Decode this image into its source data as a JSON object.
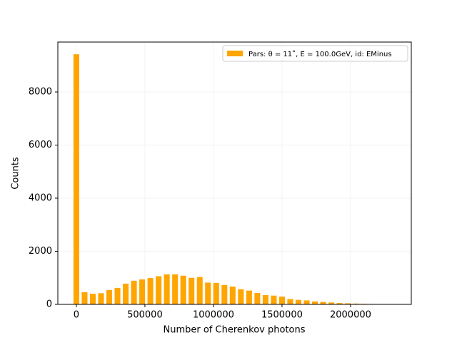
{
  "chart_data": {
    "type": "histogram",
    "xlabel": "Number of Cherenkov photons",
    "ylabel": "Counts",
    "bins": [
      -30000,
      30000,
      90000,
      150000,
      210000,
      270000,
      330000,
      390000,
      450000,
      510000,
      570000,
      630000,
      690000,
      750000,
      810000,
      870000,
      930000,
      990000,
      1050000,
      1110000,
      1170000,
      1230000,
      1290000,
      1350000,
      1410000,
      1470000,
      1530000,
      1590000,
      1650000,
      1710000,
      1770000,
      1830000,
      1890000,
      1950000,
      2010000,
      2070000,
      2130000,
      2190000,
      2250000
    ],
    "series": [
      {
        "name": "Pars: θ = 11˚, E = 100.0GeV, id: EMinus",
        "color": "#ffa500",
        "values": [
          9420,
          460,
          400,
          420,
          540,
          620,
          780,
          890,
          940,
          990,
          1060,
          1130,
          1130,
          1080,
          1000,
          1030,
          820,
          810,
          730,
          670,
          570,
          520,
          430,
          350,
          330,
          290,
          200,
          170,
          150,
          110,
          90,
          70,
          50,
          40,
          30,
          20,
          15,
          10
        ]
      }
    ],
    "xlim": [
      -135000,
      2443000
    ],
    "ylim": [
      0,
      9880
    ],
    "xticks": [
      0,
      500000,
      1000000,
      1500000,
      2000000
    ],
    "yticks": [
      0,
      2000,
      4000,
      6000,
      8000
    ],
    "grid": true,
    "legend": "upper right"
  }
}
